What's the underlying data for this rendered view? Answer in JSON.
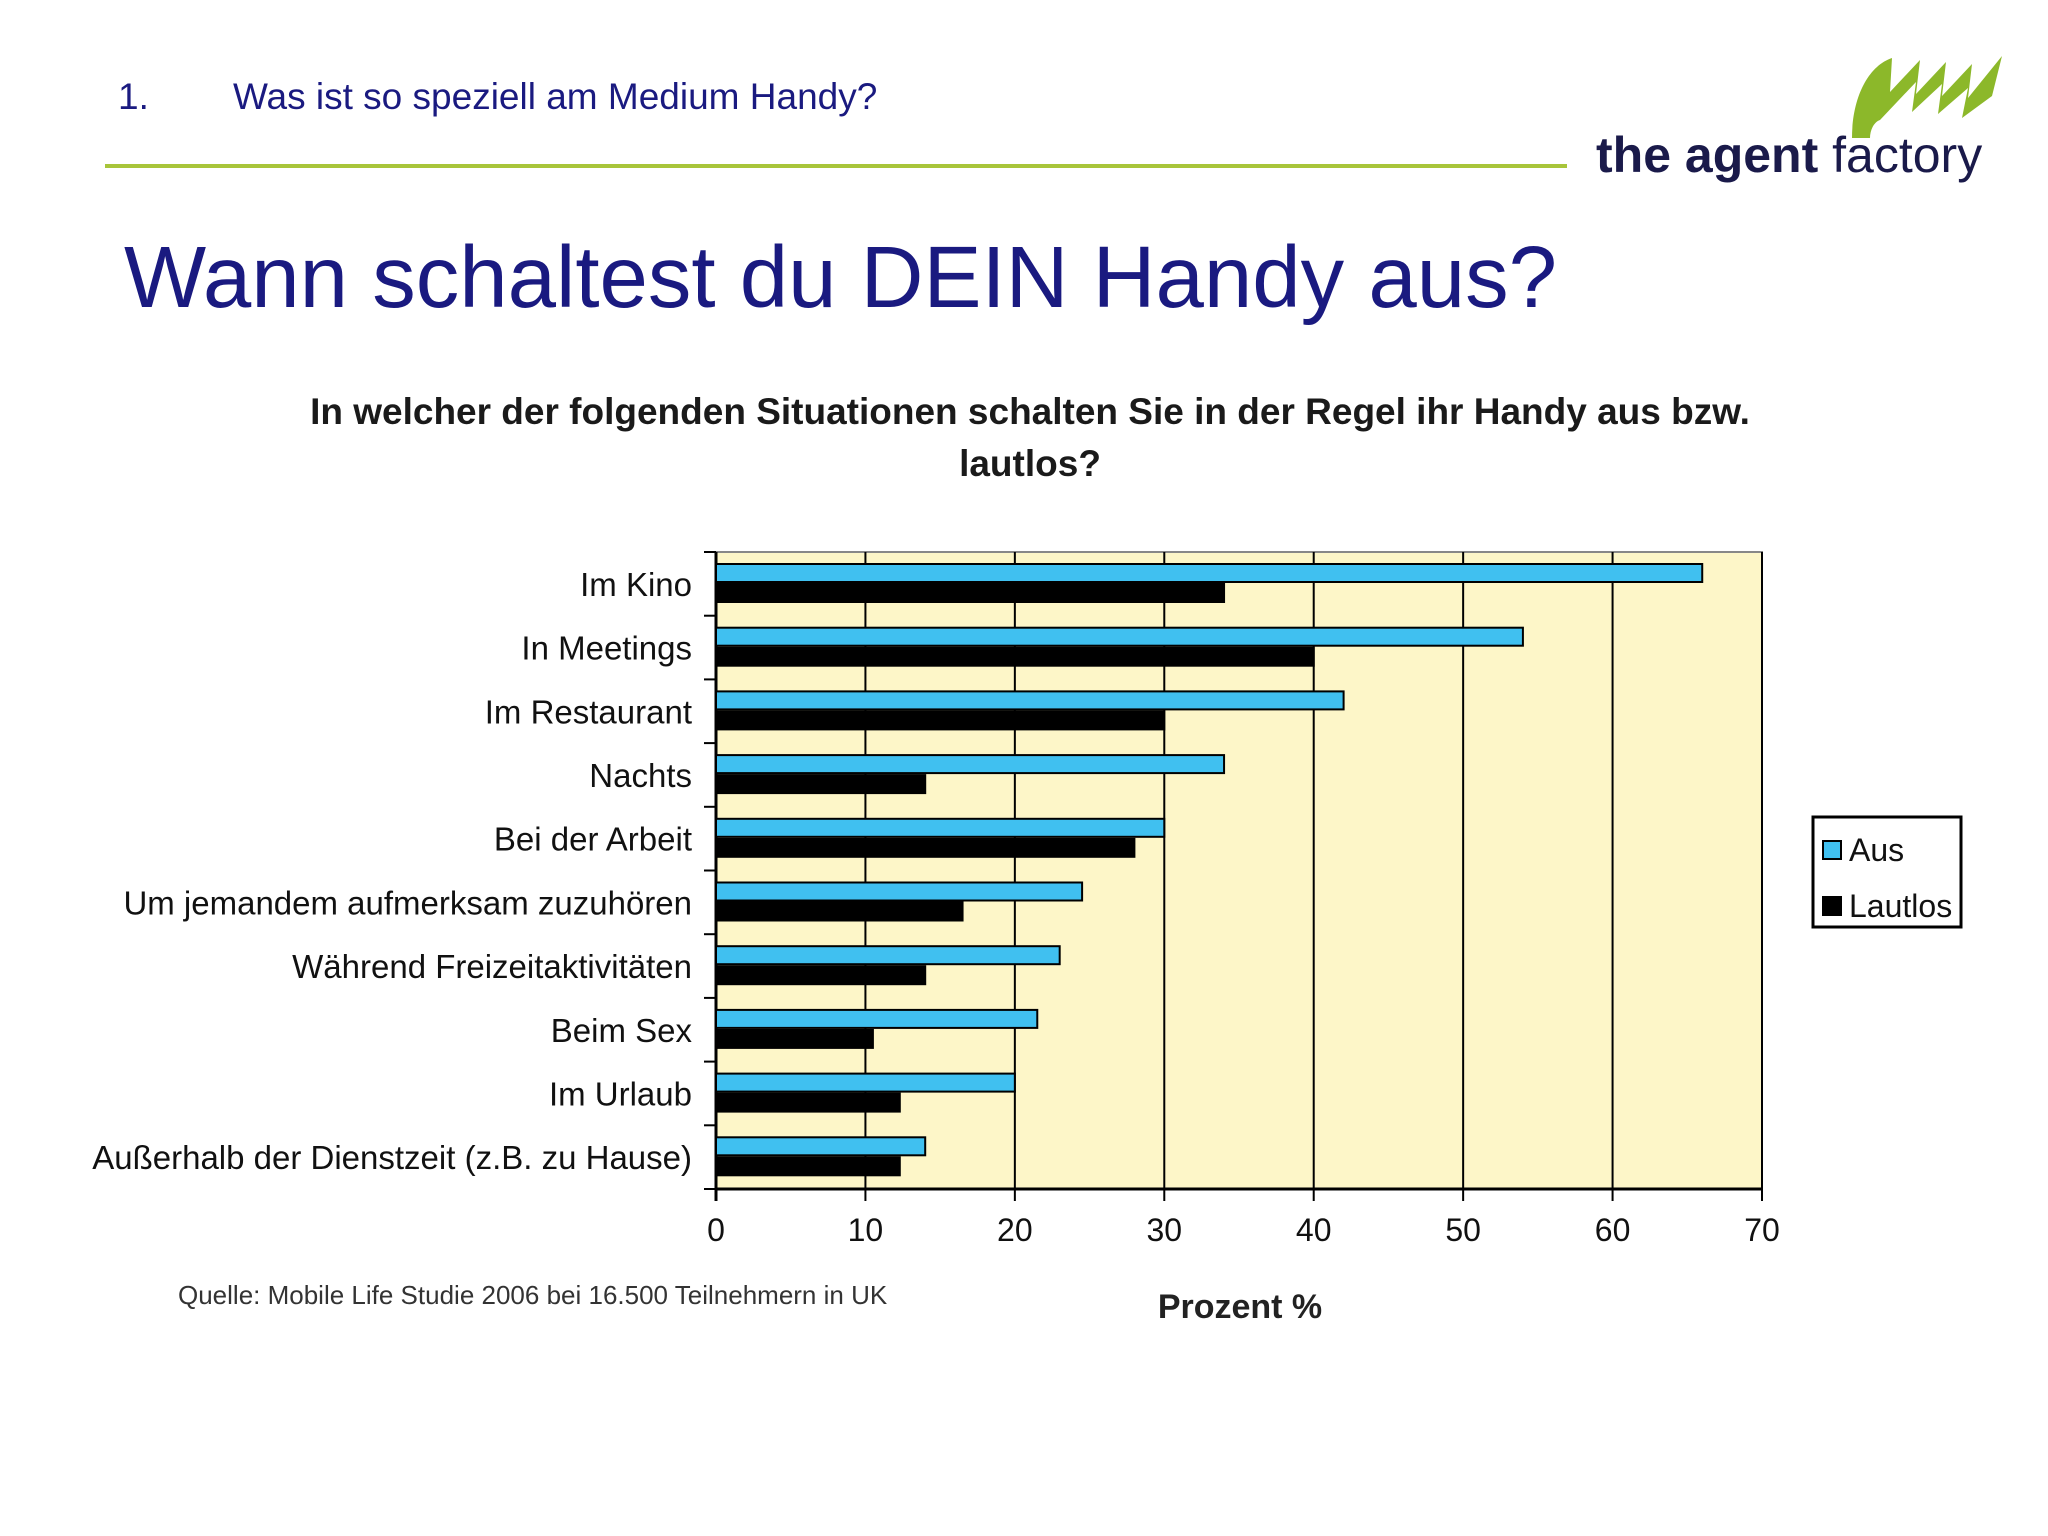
{
  "header": {
    "section_number": "1.",
    "section_title": "Was ist so speziell am Medium Handy?",
    "logo_text_bold": "the agent",
    "logo_text_light": "factory",
    "rule_color": "#a8c53a"
  },
  "page_title": "Wann schaltest du DEIN Handy aus?",
  "chart_data": {
    "type": "bar",
    "orientation": "horizontal",
    "title": "In welcher der folgenden Situationen schalten Sie in der Regel ihr Handy aus bzw. lautlos?",
    "xlabel": "Prozent %",
    "ylabel": "",
    "xlim": [
      0,
      70
    ],
    "xticks": [
      0,
      10,
      20,
      30,
      40,
      50,
      60,
      70
    ],
    "grid": true,
    "legend_position": "right",
    "plot_background": "#fdf6c8",
    "categories": [
      "Im Kino",
      "In Meetings",
      "Im Restaurant",
      "Nachts",
      "Bei der Arbeit",
      "Um jemandem aufmerksam zuzuhören",
      "Während Freizeitaktivitäten",
      "Beim Sex",
      "Im Urlaub",
      "Außerhalb der Dienstzeit (z.B. zu Hause)"
    ],
    "series": [
      {
        "name": "Aus",
        "color": "#40c0f0",
        "values": [
          66,
          54,
          42,
          34,
          30,
          24.5,
          23,
          21.5,
          20,
          14
        ]
      },
      {
        "name": "Lautlos",
        "color": "#000000",
        "values": [
          34,
          40,
          30,
          14,
          28,
          16.5,
          14,
          10.5,
          12.3,
          12.3
        ]
      }
    ]
  },
  "source": "Quelle: Mobile Life Studie 2006 bei 16.500 Teilnehmern in UK"
}
